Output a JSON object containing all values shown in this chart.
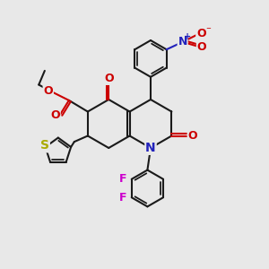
{
  "bg": "#e8e8e8",
  "bc": "#1a1a1a",
  "bw": 1.5,
  "colors": {
    "O": "#cc0000",
    "N": "#2222bb",
    "S": "#aaaa00",
    "F": "#cc00cc",
    "C": "#1a1a1a"
  },
  "figsize": [
    3.0,
    3.0
  ],
  "dpi": 100,
  "xlim": [
    0,
    10
  ],
  "ylim": [
    0,
    10
  ]
}
